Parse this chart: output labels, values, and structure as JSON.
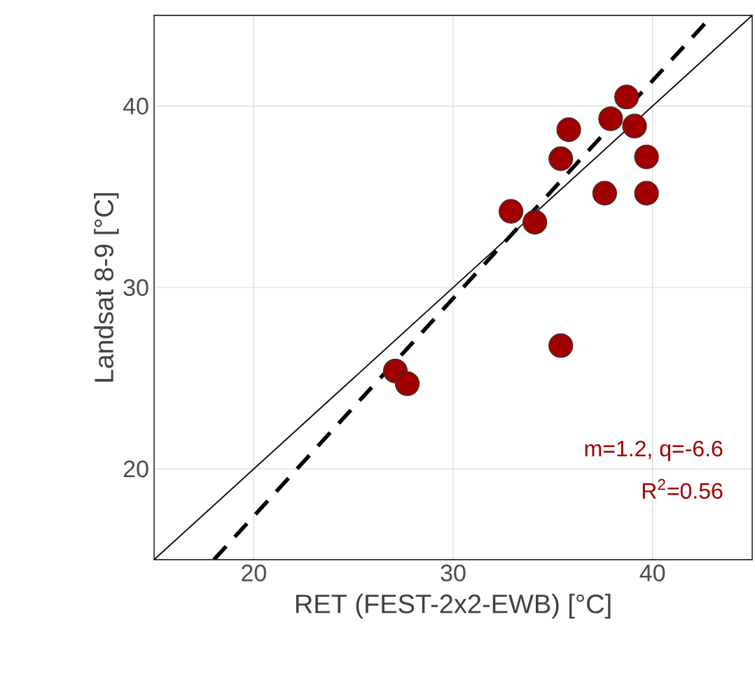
{
  "chart_data": {
    "type": "scatter",
    "xlabel": "RET (FEST-2x2-EWB) [°C]",
    "ylabel": "Landsat 8-9 [°C]",
    "xlim": [
      15,
      45
    ],
    "ylim": [
      15,
      45
    ],
    "xticks": [
      20,
      30,
      40
    ],
    "yticks": [
      20,
      30,
      40
    ],
    "grid": true,
    "series": [
      {
        "type": "line",
        "marker": "none",
        "color": "#000000",
        "line_style": "solid",
        "x": [
          15,
          45
        ],
        "values": [
          15,
          45
        ]
      },
      {
        "type": "line",
        "marker": "none",
        "color": "#000000",
        "line_style": "dashed",
        "x": [
          18,
          43
        ],
        "values": [
          15,
          45
        ]
      },
      {
        "marker": "circle",
        "color": "#a00000",
        "x": [
          38.7,
          37.9,
          39.1,
          35.8,
          35.4,
          39.7,
          37.6,
          39.7,
          32.9,
          34.1,
          35.4,
          27.1,
          27.7
        ],
        "values": [
          40.5,
          39.3,
          38.9,
          38.7,
          37.1,
          37.2,
          35.2,
          35.2,
          34.2,
          33.6,
          26.8,
          25.4,
          24.7
        ]
      }
    ],
    "annotations": [
      "m=1.2, q=-6.6",
      "R$^{2}$=0.56"
    ]
  }
}
